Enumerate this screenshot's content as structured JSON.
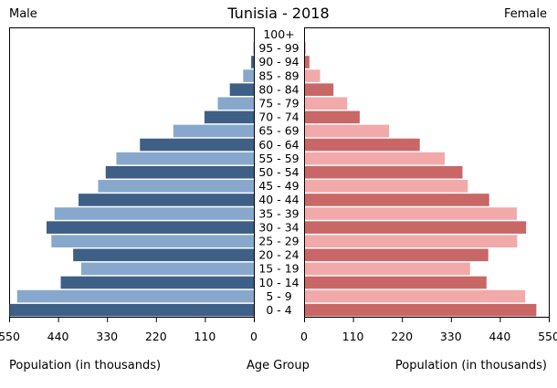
{
  "chart_data": {
    "type": "bar",
    "title": "Tunisia - 2018",
    "left_label": "Male",
    "right_label": "Female",
    "xlabel_left": "Population (in thousands)",
    "xlabel_center": "Age Group",
    "xlabel_right": "Population (in thousands)",
    "xlim": [
      0,
      550
    ],
    "x_ticks": [
      "550",
      "440",
      "330",
      "220",
      "110",
      "0"
    ],
    "x_ticks_right": [
      "0",
      "110",
      "220",
      "330",
      "440",
      "550"
    ],
    "x_tick_values": [
      550,
      440,
      330,
      220,
      110,
      0
    ],
    "x_tick_values_right": [
      0,
      110,
      220,
      330,
      440,
      550
    ],
    "categories": [
      "0 - 4",
      "5 - 9",
      "10 - 14",
      "15 - 19",
      "20 - 24",
      "25 - 29",
      "30 - 34",
      "35 - 39",
      "40 - 44",
      "45 - 49",
      "50 - 54",
      "55 - 59",
      "60 - 64",
      "65 - 69",
      "70 - 74",
      "75 - 79",
      "80 - 84",
      "85 - 89",
      "90 - 94",
      "95 - 99",
      "100+"
    ],
    "series": [
      {
        "name": "Male",
        "values": [
          549,
          532,
          434,
          388,
          406,
          455,
          466,
          448,
          394,
          350,
          333,
          309,
          256,
          181,
          111,
          81,
          54,
          24,
          6,
          1,
          0
        ]
      },
      {
        "name": "Female",
        "values": [
          520,
          495,
          408,
          371,
          412,
          477,
          497,
          476,
          414,
          366,
          354,
          314,
          258,
          189,
          123,
          95,
          64,
          34,
          10,
          2,
          0
        ]
      }
    ],
    "colors": {
      "male_dark": "#3e5f86",
      "male_light": "#87a8cc",
      "female_dark": "#c96766",
      "female_light": "#f1aaa9"
    }
  }
}
